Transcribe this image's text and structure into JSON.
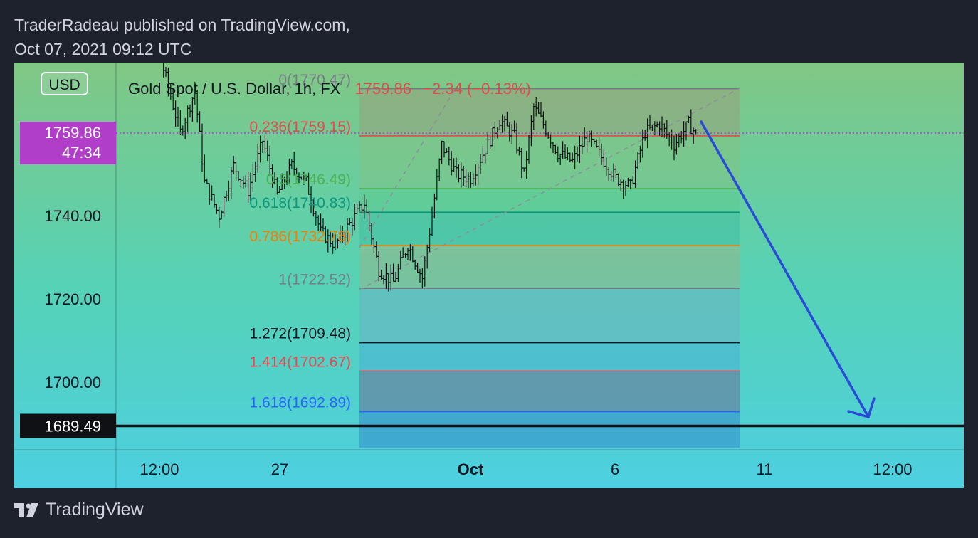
{
  "header": {
    "line1": "TraderRadeau published on TradingView.com,",
    "line2": "Oct 07, 2021 09:12 UTC"
  },
  "footer": {
    "brand": "TradingView"
  },
  "chart_data": {
    "type": "candlestick",
    "currency_badge": "USD",
    "symbol_title": "Gold Spot / U.S. Dollar, 1h, FX",
    "last_price": "1759.86",
    "change": "−2.34 (−0.13%)",
    "countdown": "47:34",
    "target_label": "1689.49",
    "colors": {
      "price_tag": "#b03ec8",
      "up_text": "#e5484d",
      "arrow": "#2a4bd7",
      "candles": "#0f1115",
      "target_line": "#0f1115"
    },
    "y_axis": {
      "ylim": [
        1665,
        1791
      ],
      "ticks": [
        {
          "value": 1740,
          "label": "1740.00"
        },
        {
          "value": 1720,
          "label": "1720.00"
        },
        {
          "value": 1700,
          "label": "1700.00"
        }
      ]
    },
    "x_axis": {
      "ticks": [
        {
          "label": "12:00",
          "bold": false
        },
        {
          "label": "27",
          "bold": false
        },
        {
          "label": "Oct",
          "bold": true
        },
        {
          "label": "6",
          "bold": false
        },
        {
          "label": "11",
          "bold": false
        },
        {
          "label": "12:00",
          "bold": false
        }
      ]
    },
    "fib_levels": [
      {
        "label": "0(1770.47)",
        "value": 1770.47,
        "color": "#787b86"
      },
      {
        "label": "0.236(1759.15)",
        "value": 1759.15,
        "color": "#e5484d"
      },
      {
        "label": "0.5(1746.49)",
        "value": 1746.49,
        "color": "#4caf50"
      },
      {
        "label": "0.618(1740.83)",
        "value": 1740.83,
        "color": "#089981"
      },
      {
        "label": "0.786(1732.78)",
        "value": 1732.78,
        "color": "#f57c00"
      },
      {
        "label": "1(1722.52)",
        "value": 1722.52,
        "color": "#787b86"
      },
      {
        "label": "1.272(1709.48)",
        "value": 1709.48,
        "color": "#131722"
      },
      {
        "label": "1.414(1702.67)",
        "value": 1702.67,
        "color": "#e5484d"
      },
      {
        "label": "1.618(1692.89)",
        "value": 1692.89,
        "color": "#2962ff"
      }
    ],
    "target_level": 1689.49,
    "price_path": [
      {
        "i": 0,
        "v": 1788
      },
      {
        "i": 8,
        "v": 1781
      },
      {
        "i": 14,
        "v": 1786
      },
      {
        "i": 20,
        "v": 1773
      },
      {
        "i": 26,
        "v": 1760
      },
      {
        "i": 32,
        "v": 1770
      },
      {
        "i": 36,
        "v": 1748
      },
      {
        "i": 42,
        "v": 1740
      },
      {
        "i": 48,
        "v": 1752
      },
      {
        "i": 54,
        "v": 1746
      },
      {
        "i": 60,
        "v": 1758
      },
      {
        "i": 66,
        "v": 1745
      },
      {
        "i": 72,
        "v": 1752
      },
      {
        "i": 78,
        "v": 1748
      },
      {
        "i": 84,
        "v": 1736
      },
      {
        "i": 90,
        "v": 1733
      },
      {
        "i": 96,
        "v": 1738
      },
      {
        "i": 102,
        "v": 1743
      },
      {
        "i": 108,
        "v": 1727
      },
      {
        "i": 114,
        "v": 1724
      },
      {
        "i": 120,
        "v": 1733
      },
      {
        "i": 126,
        "v": 1725
      },
      {
        "i": 130,
        "v": 1740
      },
      {
        "i": 134,
        "v": 1757
      },
      {
        "i": 140,
        "v": 1750
      },
      {
        "i": 146,
        "v": 1749
      },
      {
        "i": 152,
        "v": 1756
      },
      {
        "i": 158,
        "v": 1763
      },
      {
        "i": 164,
        "v": 1759
      },
      {
        "i": 168,
        "v": 1750
      },
      {
        "i": 172,
        "v": 1766
      },
      {
        "i": 176,
        "v": 1762
      },
      {
        "i": 182,
        "v": 1755
      },
      {
        "i": 188,
        "v": 1753
      },
      {
        "i": 194,
        "v": 1759
      },
      {
        "i": 200,
        "v": 1754
      },
      {
        "i": 206,
        "v": 1749
      },
      {
        "i": 212,
        "v": 1747
      },
      {
        "i": 218,
        "v": 1760
      },
      {
        "i": 224,
        "v": 1762
      },
      {
        "i": 230,
        "v": 1757
      },
      {
        "i": 236,
        "v": 1762
      },
      {
        "i": 240,
        "v": 1759
      }
    ]
  }
}
